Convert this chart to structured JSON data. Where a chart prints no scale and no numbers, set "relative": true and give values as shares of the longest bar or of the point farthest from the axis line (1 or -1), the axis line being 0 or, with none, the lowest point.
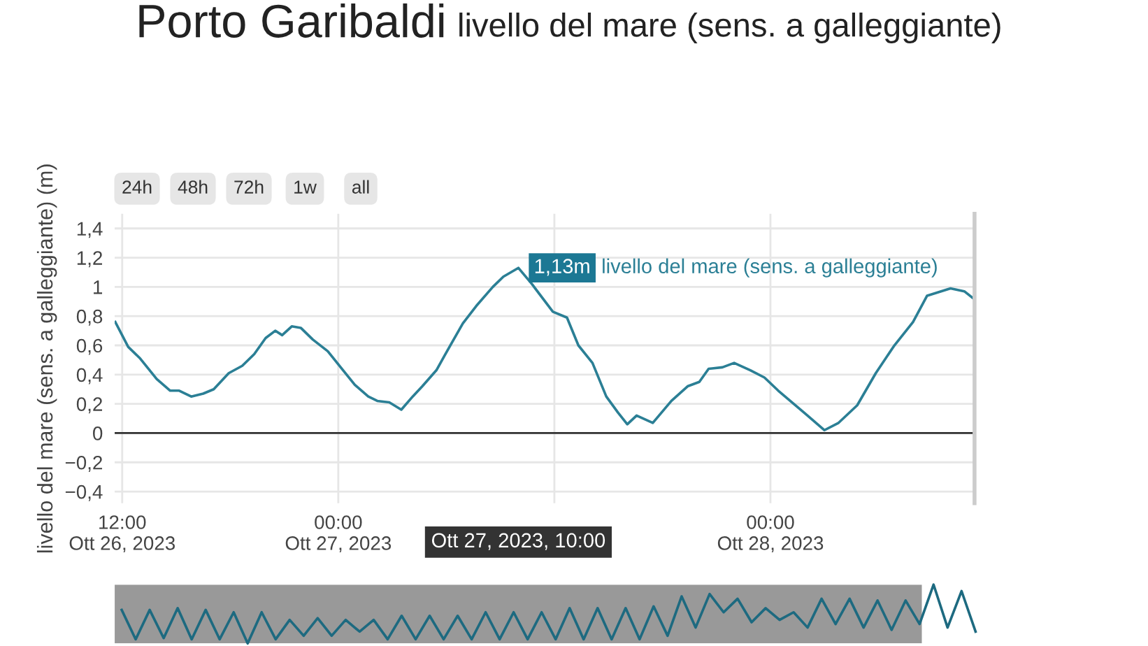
{
  "chart_data": [
    {
      "type": "line",
      "title": "Porto Garibaldi",
      "subtitle": "livello del mare (sens. a galleggiante)",
      "ylabel": "livello del mare (sens. a galleggiante) (m)",
      "x": [
        "2023-10-26T11:37",
        "2023-10-26T12:20",
        "2023-10-26T13:00",
        "2023-10-26T13:55",
        "2023-10-26T14:40",
        "2023-10-26T15:10",
        "2023-10-26T15:50",
        "2023-10-26T16:30",
        "2023-10-26T17:05",
        "2023-10-26T17:55",
        "2023-10-26T18:40",
        "2023-10-26T19:20",
        "2023-10-26T19:58",
        "2023-10-26T20:30",
        "2023-10-26T20:53",
        "2023-10-26T21:25",
        "2023-10-26T21:55",
        "2023-10-26T22:35",
        "2023-10-26T23:25",
        "2023-10-27T00:08",
        "2023-10-27T00:55",
        "2023-10-27T01:40",
        "2023-10-27T02:10",
        "2023-10-27T02:50",
        "2023-10-27T03:30",
        "2023-10-27T04:08",
        "2023-10-27T04:40",
        "2023-10-27T05:27",
        "2023-10-27T06:05",
        "2023-10-27T06:55",
        "2023-10-27T07:40",
        "2023-10-27T08:35",
        "2023-10-27T09:10",
        "2023-10-27T10:00",
        "2023-10-27T10:45",
        "2023-10-27T11:55",
        "2023-10-27T12:42",
        "2023-10-27T13:20",
        "2023-10-27T14:07",
        "2023-10-27T14:53",
        "2023-10-27T15:32",
        "2023-10-27T16:03",
        "2023-10-27T16:34",
        "2023-10-27T17:28",
        "2023-10-27T18:30",
        "2023-10-27T19:24",
        "2023-10-27T20:03",
        "2023-10-27T20:34",
        "2023-10-27T21:20",
        "2023-10-27T21:59",
        "2023-10-27T22:53",
        "2023-10-27T23:40",
        "2023-10-28T00:26",
        "2023-10-28T01:12",
        "2023-10-28T01:58",
        "2023-10-28T03:00",
        "2023-10-28T03:47",
        "2023-10-28T04:49",
        "2023-10-28T05:51",
        "2023-10-28T06:53",
        "2023-10-28T07:55",
        "2023-10-28T08:42",
        "2023-10-28T10:00",
        "2023-10-28T10:46",
        "2023-10-28T11:17"
      ],
      "series": [
        {
          "name": "livello del mare (sens. a galleggiante)",
          "color": "#2b7f95",
          "values": [
            0.76,
            0.59,
            0.51,
            0.37,
            0.29,
            0.29,
            0.25,
            0.27,
            0.3,
            0.41,
            0.46,
            0.54,
            0.65,
            0.7,
            0.67,
            0.73,
            0.72,
            0.64,
            0.56,
            0.45,
            0.33,
            0.25,
            0.22,
            0.21,
            0.16,
            0.25,
            0.32,
            0.43,
            0.57,
            0.75,
            0.87,
            1.0,
            1.07,
            1.13,
            1.02,
            0.83,
            0.79,
            0.6,
            0.48,
            0.25,
            0.14,
            0.06,
            0.12,
            0.07,
            0.22,
            0.32,
            0.35,
            0.44,
            0.45,
            0.48,
            0.43,
            0.38,
            0.29,
            0.21,
            0.13,
            0.02,
            0.07,
            0.19,
            0.41,
            0.6,
            0.76,
            0.94,
            0.99,
            0.97,
            0.92
          ]
        }
      ],
      "xlim": [
        "2023-10-26T11:35",
        "2023-10-28T11:20"
      ],
      "xticks": [
        {
          "value": "2023-10-26T12:00",
          "label": "12:00\nOtt 26, 2023"
        },
        {
          "value": "2023-10-27T00:00",
          "label": "00:00\nOtt 27, 2023"
        },
        {
          "value": "2023-10-27T12:00",
          "label": null
        },
        {
          "value": "2023-10-28T00:00",
          "label": "00:00\nOtt 28, 2023"
        }
      ],
      "ylim": [
        -0.48,
        1.5
      ],
      "yticks": [
        {
          "value": -0.4,
          "label": "−0,4"
        },
        {
          "value": -0.2,
          "label": "−0,2"
        },
        0,
        {
          "value": 0.2,
          "label": "0,2"
        },
        {
          "value": 0.4,
          "label": "0,4"
        },
        {
          "value": 0.6,
          "label": "0,6"
        },
        {
          "value": 0.8,
          "label": "0,8"
        },
        1,
        {
          "value": 1.2,
          "label": "1,2"
        },
        {
          "value": 1.4,
          "label": "1,4"
        }
      ],
      "grid": true,
      "ref_lines": [
        {
          "axis": "y",
          "value": 0,
          "color": "#333333"
        }
      ],
      "annotations": [
        "24h",
        "48h",
        "72h",
        "1w",
        "all",
        {
          "text": "1,13m",
          "x": "2023-10-27T10:00",
          "y": 1.13
        },
        "Ott 27, 2023, 10:00"
      ]
    },
    {
      "type": "line",
      "relative": true,
      "categories": [
        null,
        null,
        null,
        null,
        null,
        null,
        null,
        null,
        null,
        null,
        null,
        null,
        null,
        null,
        null,
        null,
        null,
        null,
        null,
        null,
        null,
        null,
        null,
        null,
        null,
        null,
        null,
        null,
        null,
        null,
        null,
        null,
        null,
        null,
        null,
        null,
        null,
        null,
        null,
        null,
        null,
        null,
        null,
        null,
        null,
        null,
        null,
        null,
        null,
        null,
        null,
        null,
        null,
        null,
        null,
        null,
        null,
        null,
        null,
        null,
        null,
        null
      ],
      "series": [
        {
          "color": "#1d6a80",
          "values": [
            0.57,
            0.07,
            0.57,
            0.09,
            0.6,
            0.07,
            0.57,
            0.07,
            0.53,
            0,
            0.53,
            0.07,
            0.4,
            0.13,
            0.43,
            0.13,
            0.4,
            0.2,
            0.4,
            0.07,
            0.47,
            0.07,
            0.47,
            0.07,
            0.47,
            0.07,
            0.53,
            0.07,
            0.53,
            0.07,
            0.53,
            0.07,
            0.6,
            0.07,
            0.6,
            0.07,
            0.6,
            0.07,
            0.63,
            0.13,
            0.8,
            0.27,
            0.84,
            0.53,
            0.76,
            0.36,
            0.6,
            0.4,
            0.53,
            0.27,
            0.76,
            0.33,
            0.76,
            0.27,
            0.73,
            0.23,
            0.73,
            0.33,
            1,
            0.27,
            0.89,
            0.2
          ]
        }
      ]
    }
  ]
}
